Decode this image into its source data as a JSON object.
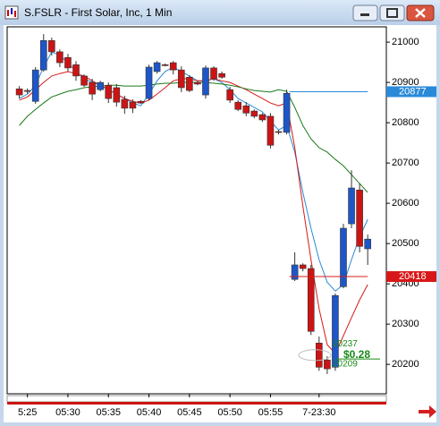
{
  "chart_data": {
    "type": "candlestick",
    "title": "S.FSLR - First Solar, Inc, 1 Min",
    "up_color": "#1e56c8",
    "down_color": "#cc1414",
    "ylim": [
      20127,
      21038
    ],
    "yticks": [
      21000,
      20900,
      20800,
      20700,
      20600,
      20500,
      20400,
      20300,
      20200
    ],
    "xlim": [
      -1.5,
      45.3
    ],
    "xticks": [
      {
        "value": 1,
        "label": "5:25"
      },
      {
        "value": 6,
        "label": "05:30"
      },
      {
        "value": 11,
        "label": "05:35"
      },
      {
        "value": 16,
        "label": "05:40"
      },
      {
        "value": 21,
        "label": "05:45"
      },
      {
        "value": 26,
        "label": "05:50"
      },
      {
        "value": 31,
        "label": "05:55"
      },
      {
        "value": 37,
        "label": "7-23:30"
      }
    ],
    "x": [
      0,
      1,
      2,
      3,
      4,
      5,
      6,
      7,
      8,
      9,
      10,
      11,
      12,
      13,
      14,
      15,
      16,
      17,
      18,
      19,
      20,
      21,
      22,
      23,
      24,
      25,
      26,
      27,
      28,
      29,
      30,
      31,
      32,
      33,
      34,
      35,
      36,
      37,
      38,
      39,
      40,
      41,
      42,
      43
    ],
    "open": [
      20884,
      20880,
      20853,
      20931,
      21004,
      20976,
      20962,
      20944,
      20916,
      20900,
      20882,
      20893,
      20887,
      20858,
      20851,
      20853,
      20860,
      20927,
      20944,
      20949,
      20931,
      20913,
      20900,
      20869,
      20936,
      20922,
      20882,
      20851,
      20842,
      20829,
      20820,
      20816,
      20778,
      20776,
      20411,
      20447,
      20438,
      20253,
      20211,
      20193,
      20393,
      20549,
      20633,
      20487
    ],
    "high": [
      20891,
      20885,
      20938,
      21020,
      21011,
      20982,
      20971,
      20953,
      20920,
      20909,
      20904,
      20900,
      20896,
      20867,
      20858,
      20856,
      20944,
      20953,
      20947,
      20953,
      20940,
      20918,
      20904,
      20942,
      20940,
      20927,
      20889,
      20856,
      20851,
      20833,
      20824,
      20824,
      20782,
      20882,
      20478,
      20451,
      20447,
      20269,
      20220,
      20376,
      20549,
      20682,
      20649,
      20522
    ],
    "low": [
      20860,
      20872,
      20847,
      20927,
      20967,
      20938,
      20927,
      20904,
      20889,
      20856,
      20878,
      20849,
      20840,
      20822,
      20824,
      20847,
      20856,
      20922,
      20940,
      20920,
      20876,
      20876,
      20893,
      20860,
      20904,
      20909,
      20849,
      20829,
      20816,
      20811,
      20802,
      20736,
      20771,
      20771,
      20407,
      20431,
      20273,
      20184,
      20176,
      20184,
      20389,
      20538,
      20478,
      20447
    ],
    "close": [
      20869,
      20878,
      20931,
      21004,
      20976,
      20949,
      20936,
      20916,
      20893,
      20871,
      20900,
      20860,
      20851,
      20836,
      20836,
      20849,
      20938,
      20949,
      20942,
      20931,
      20887,
      20880,
      20896,
      20936,
      20909,
      20913,
      20856,
      20833,
      20824,
      20816,
      20807,
      20744,
      20776,
      20873,
      20447,
      20438,
      20282,
      20193,
      20189,
      20371,
      20538,
      20638,
      20493,
      20511
    ],
    "series": [
      {
        "color": "#2a8ad8",
        "values": [
          20860,
          20871,
          20893,
          20938,
          20976,
          20967,
          20949,
          20927,
          20909,
          20900,
          20893,
          20882,
          20871,
          20860,
          20849,
          20842,
          20871,
          20904,
          20927,
          20938,
          20927,
          20916,
          20904,
          20904,
          20909,
          20900,
          20882,
          20860,
          20849,
          20838,
          20827,
          20804,
          20782,
          20793,
          20727,
          20627,
          20538,
          20460,
          20404,
          20382,
          20398,
          20460,
          20516,
          20560
        ]
      },
      {
        "color": "#d81818",
        "values": [
          20856,
          20864,
          20882,
          20900,
          20916,
          20922,
          20927,
          20922,
          20916,
          20904,
          20893,
          20882,
          20871,
          20860,
          20853,
          20849,
          20856,
          20871,
          20887,
          20904,
          20909,
          20909,
          20904,
          20904,
          20909,
          20904,
          20900,
          20891,
          20882,
          20871,
          20860,
          20849,
          20842,
          20849,
          20738,
          20593,
          20460,
          20338,
          20249,
          20227,
          20271,
          20316,
          20360,
          20398
        ]
      },
      {
        "color": "#1a7a1a",
        "values": [
          20793,
          20816,
          20833,
          20849,
          20864,
          20871,
          20878,
          20882,
          20887,
          20889,
          20891,
          20893,
          20893,
          20891,
          20891,
          20891,
          20893,
          20896,
          20898,
          20898,
          20900,
          20900,
          20900,
          20900,
          20898,
          20896,
          20893,
          20889,
          20884,
          20880,
          20878,
          20876,
          20882,
          20878,
          20838,
          20793,
          20760,
          20738,
          20727,
          20709,
          20693,
          20671,
          20649,
          20627
        ]
      }
    ],
    "price_markers": [
      {
        "value": 20877,
        "color": "#2a8ad8"
      },
      {
        "value": 20418,
        "color": "#d81818"
      }
    ],
    "range_annotation": {
      "high": 20237,
      "low": 20209,
      "label": "$0.28",
      "color": "#1a8a1a"
    }
  }
}
